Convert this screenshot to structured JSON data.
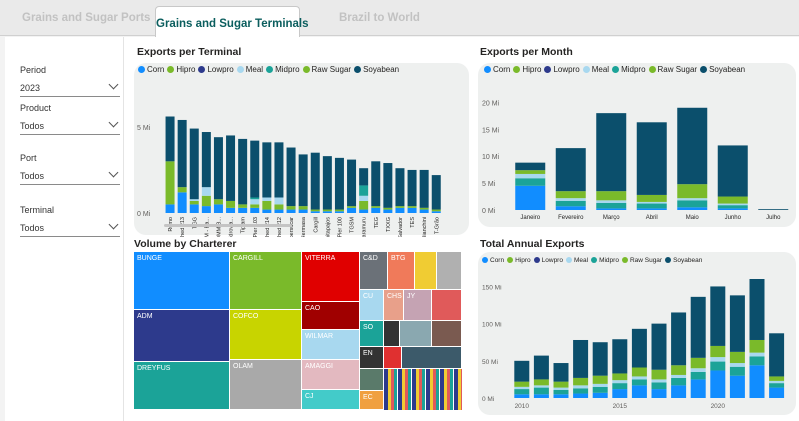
{
  "tabs": [
    {
      "label": "Grains and Sugar Ports"
    },
    {
      "label": "Grains and Sugar Terminals"
    },
    {
      "label": "Brazil to World"
    }
  ],
  "filters": {
    "period_label": "Period",
    "period_value": "2023",
    "product_label": "Product",
    "product_value": "Todos",
    "port_label": "Port",
    "port_value": "Todos",
    "terminal_label": "Terminal",
    "terminal_value": "Todos"
  },
  "colors": {
    "Corn": "#118dff",
    "Hipro": "#7aba2a",
    "Lowpro": "#2d3a8c",
    "Meal": "#a8d8ef",
    "Midpro": "#1ba398",
    "Raw Sugar": "#7aba2a",
    "Soyabean": "#0b4f6c"
  },
  "legend_per_terminal": [
    "Corn",
    "Hipro",
    "Lowpro",
    "Meal",
    "Midpro",
    "Raw Sugar",
    "Soyabean"
  ],
  "legend_annual": [
    "Corn",
    "Hipro",
    "Lowpro",
    "Meal",
    "Midpro",
    "Raw Sugar",
    "Soyabean"
  ],
  "titles": {
    "per_terminal": "Exports per Terminal",
    "per_month": "Exports per Month",
    "charterer": "Volume by Charterer",
    "annual": "Total Annual Exports"
  },
  "chart_data": [
    {
      "type": "bar",
      "title": "Exports per Terminal",
      "y_ticks": [
        "5 Mi",
        "0 Mi"
      ],
      "ylim": [
        0,
        6.5
      ],
      "categories": [
        "Rumo",
        "Shed 213",
        "TGG",
        "ADM - Ba...",
        "COMM B...",
        "Hidrovia...",
        "Tiplam",
        "Pier 103",
        "Shed 214",
        "Shed 212",
        "Copersucar",
        "Hermasa",
        "Cargill",
        "Unitapajos",
        "Pier 100",
        "TGSM",
        "Caramuru",
        "TEG",
        "TXXG",
        "Salvador",
        "TES",
        "Bianchini",
        "T-Grão"
      ],
      "series": [
        {
          "name": "Corn",
          "values": [
            0.5,
            1.2,
            0.5,
            0.4,
            0.5,
            0.3,
            0.3,
            0.3,
            0.2,
            0.2,
            0.2,
            0.2,
            0.1,
            0.1,
            0.1,
            0.3,
            0.2,
            0.3,
            0.2,
            0.3,
            0.3,
            0.2,
            0.1
          ]
        },
        {
          "name": "Hipro",
          "values": [
            2.5,
            0.3,
            0.2,
            0.6,
            0.3,
            0.4,
            0.2,
            0.2,
            0.5,
            0.3,
            0.2,
            0.2,
            0.1,
            0.1,
            0.1,
            0.1,
            0.5,
            0.1,
            0.1,
            0.1,
            0.1,
            0.1,
            0.1
          ]
        },
        {
          "name": "Meal",
          "values": [
            0,
            0,
            0.1,
            0.5,
            0,
            0,
            0,
            0.3,
            0.2,
            0.4,
            0,
            0,
            0,
            0,
            0,
            0,
            0.3,
            0,
            0,
            0,
            0,
            0,
            0
          ]
        },
        {
          "name": "Midpro",
          "values": [
            0,
            0,
            0,
            0,
            0,
            0,
            0,
            0.1,
            0,
            0,
            0,
            0,
            0,
            0,
            0,
            0,
            0.6,
            0,
            0,
            0,
            0,
            0,
            0
          ]
        },
        {
          "name": "Soyabean",
          "values": [
            2.6,
            3.9,
            4.1,
            3.2,
            3.6,
            3.8,
            3.8,
            3.3,
            3.2,
            3.2,
            3.4,
            3.0,
            3.3,
            3.1,
            3.0,
            2.7,
            1.0,
            2.6,
            2.6,
            2.2,
            2.1,
            2.2,
            2.0
          ]
        }
      ]
    },
    {
      "type": "bar",
      "title": "Exports per Month",
      "y_ticks": [
        "20 Mi",
        "15 Mi",
        "10 Mi",
        "5 Mi",
        "0 Mi"
      ],
      "ylim": [
        0,
        21
      ],
      "categories": [
        "Janeiro",
        "Fevereiro",
        "Março",
        "Abril",
        "Maio",
        "Junho",
        "Julho"
      ],
      "series": [
        {
          "name": "Corn",
          "values": [
            4.5,
            0.7,
            0.3,
            0.3,
            0.5,
            0.3,
            0
          ]
        },
        {
          "name": "Midpro",
          "values": [
            1.4,
            1.0,
            1.0,
            0.9,
            1.3,
            0.6,
            0
          ]
        },
        {
          "name": "Meal",
          "values": [
            0.8,
            0.5,
            0.5,
            0.3,
            0.4,
            0.3,
            0
          ]
        },
        {
          "name": "Hipro",
          "values": [
            0.7,
            1.3,
            1.7,
            1.3,
            2.6,
            1.3,
            0
          ]
        },
        {
          "name": "Soyabean",
          "values": [
            1.4,
            8.0,
            14.5,
            13.5,
            14.2,
            9.5,
            0.15
          ]
        }
      ]
    },
    {
      "type": "bar",
      "title": "Total Annual Exports",
      "y_ticks": [
        "150 Mi",
        "100 Mi",
        "50 Mi",
        "0 Mi"
      ],
      "ylim": [
        0,
        160
      ],
      "x_ticks": [
        "2010",
        "2015",
        "2020"
      ],
      "categories": [
        "2010",
        "2011",
        "2012",
        "2013",
        "2014",
        "2015",
        "2016",
        "2017",
        "2018",
        "2019",
        "2020",
        "2021",
        "2022",
        "2023"
      ],
      "series": [
        {
          "name": "Corn",
          "values": [
            5,
            5,
            5,
            6,
            7,
            12,
            17,
            12,
            17,
            25,
            37,
            30,
            44,
            14
          ]
        },
        {
          "name": "Midpro",
          "values": [
            7,
            9,
            6,
            7,
            8,
            8,
            8,
            9,
            10,
            10,
            12,
            12,
            12,
            6
          ]
        },
        {
          "name": "Meal",
          "values": [
            3,
            3,
            3,
            4,
            4,
            4,
            4,
            4,
            4,
            5,
            6,
            5,
            5,
            3
          ]
        },
        {
          "name": "Hipro",
          "values": [
            7,
            8,
            8,
            10,
            11,
            9,
            12,
            13,
            13,
            14,
            15,
            15,
            17,
            6
          ]
        },
        {
          "name": "Soyabean",
          "values": [
            28,
            32,
            25,
            51,
            45,
            46,
            52,
            62,
            71,
            82,
            80,
            76,
            82,
            58
          ]
        }
      ]
    },
    {
      "type": "heatmap",
      "title": "Volume by Charterer",
      "labels": [
        "BUNGE",
        "CARGILL",
        "VITERRA",
        "C&D",
        "BTG",
        "ADM",
        "COFCO",
        "CAO",
        "CU",
        "CHS",
        "JY",
        "WILMAR",
        "SO",
        "AMAGGI",
        "EN",
        "OLAM",
        "DREYFUS",
        "CJ",
        "EC"
      ]
    }
  ]
}
